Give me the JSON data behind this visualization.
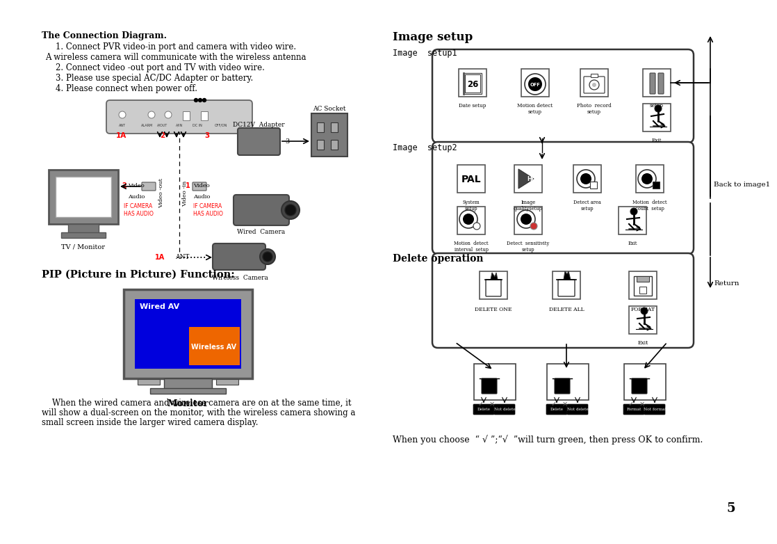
{
  "bg_color": "#ffffff",
  "page_number": "5",
  "conn_title": "The Connection Diagram.",
  "conn_instructions": [
    "1. Connect PVR video-in port and camera with video wire.",
    "A wireless camera will communicate with the wireless antenna",
    "2. Connect video -out port and TV with video wire.",
    "3. Please use special AC/DC Adapter or battery.",
    "4. Please connect when power off."
  ],
  "pip_title": "PIP (Picture in Picture) Function:",
  "pip_monitor_label": "Monitor",
  "pip_wired_label": "Wired AV",
  "pip_wireless_label": "Wireless AV",
  "pip_body_color": "#969696",
  "pip_screen_color": "#0000dd",
  "pip_overlay_color": "#ee6600",
  "pip_desc": [
    "    When the wired camera and wireless camera are on at the same time, it",
    "will show a dual-screen on the monitor, with the wireless camera showing a",
    "small screen inside the larger wired camera display."
  ],
  "img_setup_title": "Image setup",
  "setup1_label": "Image  setup1",
  "setup2_label": "Image  setup2",
  "delete_label": "Delete operation",
  "back_label": "Back to image1",
  "return_label": "Return",
  "bottom_text": "When you choose  “ √ ”;“√  ”will turn green, then press OK to confirm.",
  "dvr_color": "#cccccc",
  "cam_color": "#6a6a6a",
  "ac_color": "#888888"
}
